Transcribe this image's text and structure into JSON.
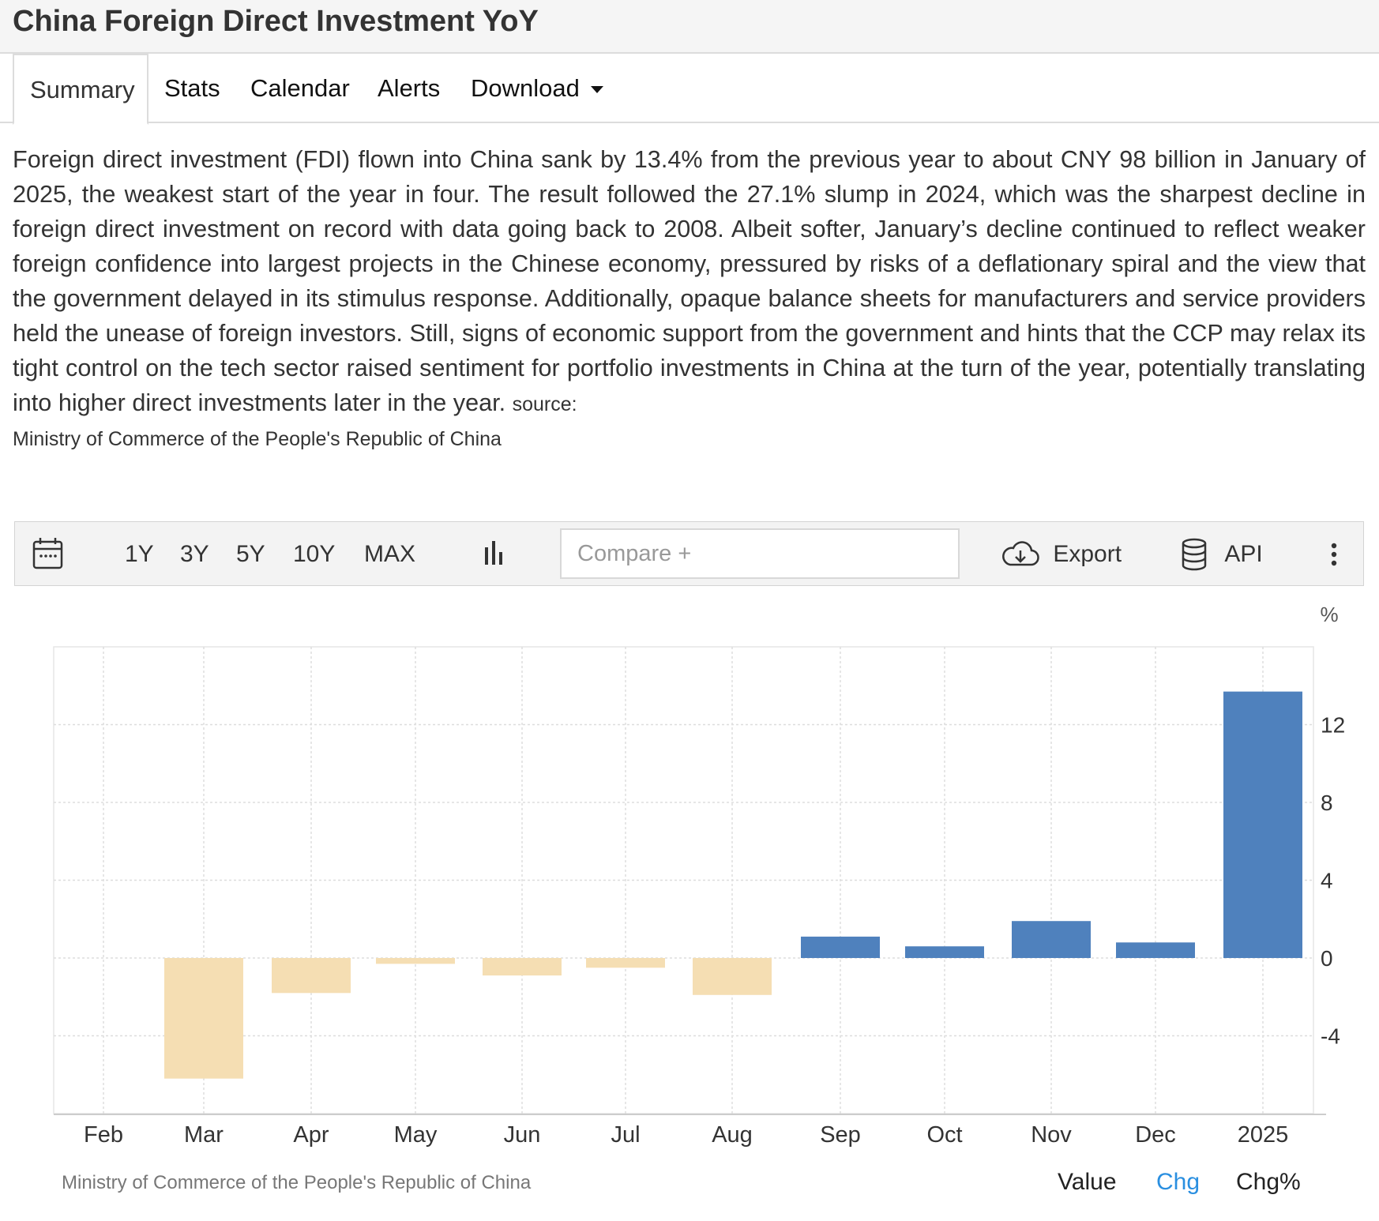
{
  "page": {
    "title": "China Foreign Direct Investment YoY"
  },
  "tabs": [
    "Summary",
    "Stats",
    "Calendar",
    "Alerts",
    "Download"
  ],
  "summary": {
    "text": "Foreign direct investment (FDI) flown into China sank by 13.4% from the previous year to about CNY 98 billion in January of 2025, the weakest start of the year in four. The result followed the 27.1% slump in 2024, which was the sharpest decline in foreign direct investment on record with data going back to 2008. Albeit softer, January’s decline continued to reflect weaker foreign confidence into largest projects in the Chinese economy, pressured by risks of a deflationary spiral and the view that the government delayed in its stimulus response. Additionally, opaque balance sheets for manufacturers and service providers held the unease of foreign investors. Still, signs of economic support from the government and hints that the CCP may relax its tight control on the tech sector raised sentiment for portfolio investments in China at the turn of the year, potentially translating into higher direct investments later in the year.",
    "source_label": "source:",
    "source": "Ministry of Commerce of the People's Republic of China"
  },
  "toolbar": {
    "ranges": [
      "1Y",
      "3Y",
      "5Y",
      "10Y",
      "MAX"
    ],
    "compare_placeholder": "Compare +",
    "export_label": "Export",
    "api_label": "API"
  },
  "chart_data": {
    "type": "bar",
    "unit": "%",
    "categories": [
      "Feb",
      "Mar",
      "Apr",
      "May",
      "Jun",
      "Jul",
      "Aug",
      "Sep",
      "Oct",
      "Nov",
      "Dec",
      "2025"
    ],
    "values": [
      null,
      -6.2,
      -1.8,
      -0.3,
      -0.9,
      -0.5,
      -1.9,
      1.1,
      0.6,
      1.9,
      0.8,
      13.7
    ],
    "yticks": [
      12,
      8,
      4,
      0,
      -4
    ],
    "ylim": [
      -8,
      16
    ],
    "grid": true,
    "colors": {
      "positive": "#4f81bd",
      "negative": "#f5deb3",
      "grid": "#dddddd"
    },
    "source": "Ministry of Commerce of the People's Republic of China",
    "footer_options": [
      "Value",
      "Chg",
      "Chg%"
    ],
    "active_option": "Chg",
    "active_color": "#2a8fe0"
  }
}
